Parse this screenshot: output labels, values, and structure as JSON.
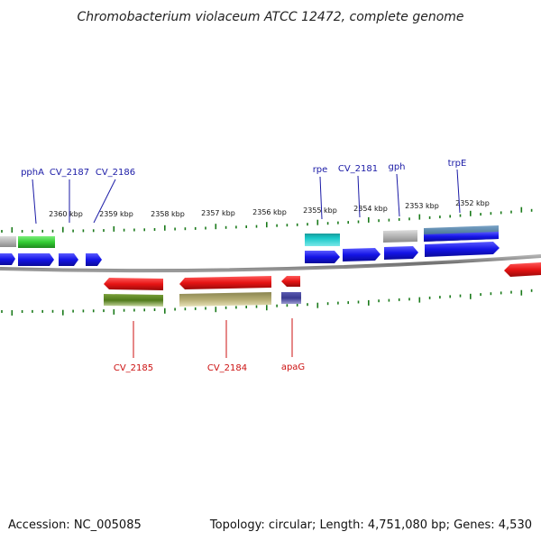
{
  "title": "Chromobacterium violaceum ATCC 12472, complete genome",
  "footer": {
    "accession": "Accession: NC_005085",
    "topology": "Topology: circular; Length: 4,751,080 bp; Genes: 4,530"
  },
  "scale_labels": [
    "2360 kbp",
    "2359 kbp",
    "2358 kbp",
    "2357 kbp",
    "2356 kbp",
    "2355 kbp",
    "2354 kbp",
    "2353 kbp",
    "2352 kbp"
  ],
  "gene_labels_top": [
    {
      "id": "pphA",
      "text": "pphA"
    },
    {
      "id": "cv2187",
      "text": "CV_2187"
    },
    {
      "id": "cv2186",
      "text": "CV_2186"
    },
    {
      "id": "rpe",
      "text": "rpe"
    },
    {
      "id": "cv2181",
      "text": "CV_2181"
    },
    {
      "id": "gph",
      "text": "gph"
    },
    {
      "id": "trpE",
      "text": "trpE"
    }
  ],
  "gene_labels_bottom": [
    {
      "id": "cv2185",
      "text": "CV_2185"
    },
    {
      "id": "cv2184",
      "text": "CV_2184"
    },
    {
      "id": "apaG",
      "text": "apaG"
    }
  ],
  "colors": {
    "forward_cds": "#1414e6",
    "reverse_cds": "#e61414",
    "backbone": "#808080",
    "tick": "#1a7a1a",
    "label_top": "#1a1aa6",
    "label_bottom": "#cc1111",
    "gray_feature": "#b4b4b4",
    "green_feature": "#33cc33",
    "cyan_feature": "#18c8c8",
    "olive_feature": "#4f7a1a",
    "khaki_feature": "#b4ac72",
    "indigo_feature": "#3a3a90",
    "steel_feature": "#4f7a9c"
  }
}
